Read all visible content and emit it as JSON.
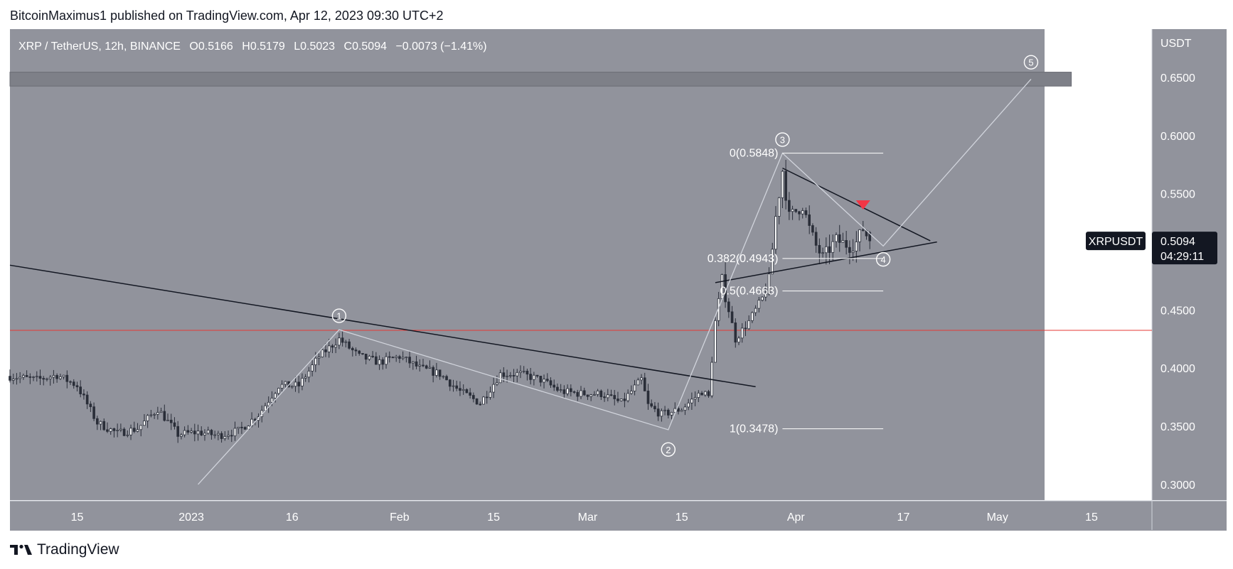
{
  "header": {
    "published_line": "BitcoinMaximus1 published on TradingView.com, Apr 12, 2023 09:30 UTC+2"
  },
  "footer": {
    "brand": "TradingView",
    "logo_icon": "tradingview-logo-icon"
  },
  "chart_data": {
    "type": "candlestick",
    "symbol_legend": {
      "title": "XRP / TetherUS, 12h, BINANCE",
      "open_label": "O",
      "open": "0.5166",
      "high_label": "H",
      "high": "0.5179",
      "low_label": "L",
      "low": "0.5023",
      "close_label": "C",
      "close": "0.5094",
      "change": "−0.0073 (−1.41%)"
    },
    "currency": "USDT",
    "y_axis": {
      "range": [
        0.2865,
        0.6915
      ],
      "ticks": [
        0.3,
        0.35,
        0.4,
        0.45,
        0.5,
        0.55,
        0.6,
        0.65
      ],
      "tick_labels": [
        "0.3000",
        "0.3500",
        "0.4000",
        "0.4500",
        "0.5000",
        "0.5500",
        "0.6000",
        "0.6500"
      ]
    },
    "x_axis": {
      "start_date": "2022-12-05",
      "end_date": "2023-05-24",
      "ticks": [
        {
          "date": "2022-12-15",
          "label": "15"
        },
        {
          "date": "2023-01-01",
          "label": "2023"
        },
        {
          "date": "2023-01-16",
          "label": "16"
        },
        {
          "date": "2023-02-01",
          "label": "Feb"
        },
        {
          "date": "2023-02-15",
          "label": "15"
        },
        {
          "date": "2023-03-01",
          "label": "Mar"
        },
        {
          "date": "2023-03-15",
          "label": "15"
        },
        {
          "date": "2023-04-01",
          "label": "Apr"
        },
        {
          "date": "2023-04-17",
          "label": "17"
        },
        {
          "date": "2023-05-01",
          "label": "May"
        },
        {
          "date": "2023-05-15",
          "label": "15"
        }
      ]
    },
    "price_tag": {
      "symbol": "XRPUSDT",
      "price": "0.5094",
      "countdown": "04:29:11",
      "value": 0.5094
    },
    "price_path": [
      [
        "2022-12-05",
        0.393
      ],
      [
        "2022-12-09",
        0.39
      ],
      [
        "2022-12-12",
        0.394
      ],
      [
        "2022-12-15",
        0.385
      ],
      [
        "2022-12-18",
        0.353
      ],
      [
        "2022-12-21",
        0.344
      ],
      [
        "2022-12-24",
        0.348
      ],
      [
        "2022-12-27",
        0.365
      ],
      [
        "2022-12-30",
        0.343
      ],
      [
        "2023-01-02",
        0.345
      ],
      [
        "2023-01-05",
        0.342
      ],
      [
        "2023-01-08",
        0.346
      ],
      [
        "2023-01-11",
        0.36
      ],
      [
        "2023-01-14",
        0.385
      ],
      [
        "2023-01-17",
        0.385
      ],
      [
        "2023-01-20",
        0.41
      ],
      [
        "2023-01-23",
        0.425
      ],
      [
        "2023-01-26",
        0.41
      ],
      [
        "2023-01-29",
        0.405
      ],
      [
        "2023-02-01",
        0.41
      ],
      [
        "2023-02-04",
        0.4
      ],
      [
        "2023-02-07",
        0.395
      ],
      [
        "2023-02-10",
        0.38
      ],
      [
        "2023-02-13",
        0.37
      ],
      [
        "2023-02-16",
        0.395
      ],
      [
        "2023-02-19",
        0.395
      ],
      [
        "2023-02-22",
        0.39
      ],
      [
        "2023-02-25",
        0.38
      ],
      [
        "2023-02-28",
        0.378
      ],
      [
        "2023-03-03",
        0.378
      ],
      [
        "2023-03-06",
        0.37
      ],
      [
        "2023-03-09",
        0.39
      ],
      [
        "2023-03-10",
        0.368
      ],
      [
        "2023-03-12",
        0.36
      ],
      [
        "2023-03-15",
        0.365
      ],
      [
        "2023-03-18",
        0.38
      ],
      [
        "2023-03-19",
        0.375
      ],
      [
        "2023-03-20",
        0.44
      ],
      [
        "2023-03-21",
        0.475
      ],
      [
        "2023-03-23",
        0.425
      ],
      [
        "2023-03-25",
        0.44
      ],
      [
        "2023-03-27",
        0.46
      ],
      [
        "2023-03-28",
        0.475
      ],
      [
        "2023-03-29",
        0.53
      ],
      [
        "2023-03-30",
        0.57
      ],
      [
        "2023-03-31",
        0.53
      ],
      [
        "2023-04-02",
        0.54
      ],
      [
        "2023-04-03",
        0.52
      ],
      [
        "2023-04-04",
        0.505
      ],
      [
        "2023-04-05",
        0.495
      ],
      [
        "2023-04-07",
        0.51
      ],
      [
        "2023-04-09",
        0.505
      ],
      [
        "2023-04-10",
        0.508
      ],
      [
        "2023-04-11",
        0.52
      ],
      [
        "2023-04-12",
        0.5094
      ]
    ],
    "support_line": {
      "price": 0.4325,
      "color": "#e53935"
    },
    "resistance_zone": {
      "from": "2022-12-05",
      "to": "2023-05-12",
      "low": 0.6425,
      "high": 0.6545
    },
    "trendlines": [
      {
        "name": "long-term-descending-resistance",
        "from": [
          "2022-12-05",
          0.4885
        ],
        "to": [
          "2023-03-26",
          0.384
        ]
      },
      {
        "name": "triangle-upper-line",
        "from": [
          "2023-03-30",
          0.572
        ],
        "to": [
          "2023-04-21",
          0.5095
        ]
      },
      {
        "name": "triangle-lower-line",
        "from": [
          "2023-03-20",
          0.4735
        ],
        "to": [
          "2023-04-22",
          0.5085
        ]
      }
    ],
    "wave_path": [
      [
        "2023-01-02",
        0.3
      ],
      [
        "2023-01-23",
        0.433
      ],
      [
        "2023-03-13",
        0.347
      ],
      [
        "2023-03-30",
        0.5848
      ],
      [
        "2023-04-14",
        0.505
      ],
      [
        "2023-05-06",
        0.6485
      ]
    ],
    "wave_labels": [
      {
        "label": "1",
        "date": "2023-01-23",
        "price": 0.445
      },
      {
        "label": "2",
        "date": "2023-03-13",
        "price": 0.33
      },
      {
        "label": "3",
        "date": "2023-03-30",
        "price": 0.5965
      },
      {
        "label": "4",
        "date": "2023-04-14",
        "price": 0.4935
      },
      {
        "label": "5",
        "date": "2023-05-06",
        "price": 0.663
      }
    ],
    "fibonacci": {
      "from": "2023-03-30",
      "to": "2023-04-14",
      "levels": [
        {
          "label": "0(0.5848)",
          "price": 0.5848
        },
        {
          "label": "0.382(0.4943)",
          "price": 0.4943
        },
        {
          "label": "0.5(0.4663)",
          "price": 0.4663
        },
        {
          "label": "1(0.3478)",
          "price": 0.3478
        }
      ]
    },
    "red_arrow": {
      "date": "2023-04-11",
      "price": 0.54,
      "direction": "down",
      "color": "#f23645"
    },
    "colors": {
      "pane_bg": "#91939c",
      "candle": "#ffffff",
      "wave": "#d1d4dc",
      "trendline": "#131722",
      "text": "#ffffff",
      "grid_border": "#d1d4dc"
    }
  }
}
